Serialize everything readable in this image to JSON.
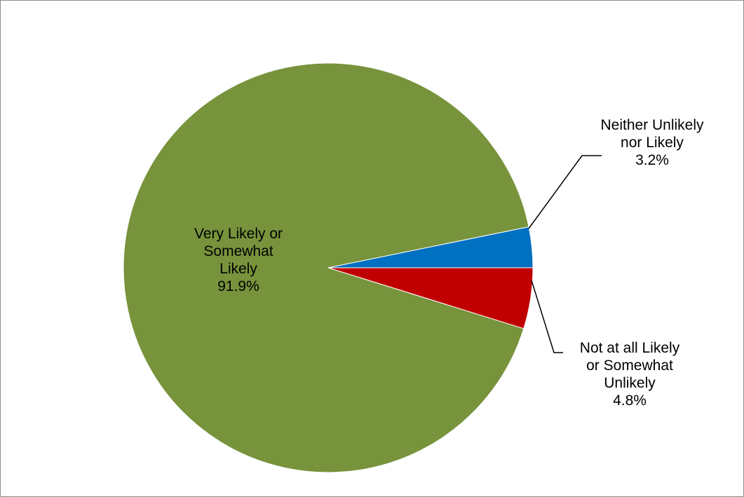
{
  "chart_data": {
    "type": "pie",
    "title": "",
    "legend": "none",
    "slices": [
      {
        "label": [
          "Very Likely or",
          "Somewhat",
          "Likely"
        ],
        "value_label": "91.9%",
        "value": 91.9,
        "color": "#77933c"
      },
      {
        "label": [
          "Neither Unlikely",
          "nor Likely"
        ],
        "value_label": "3.2%",
        "value": 3.2,
        "color": "#0070c0"
      },
      {
        "label": [
          "Not at all Likely",
          "or Somewhat",
          "Unlikely"
        ],
        "value_label": "4.8%",
        "value": 4.8,
        "color": "#c00000"
      }
    ]
  }
}
